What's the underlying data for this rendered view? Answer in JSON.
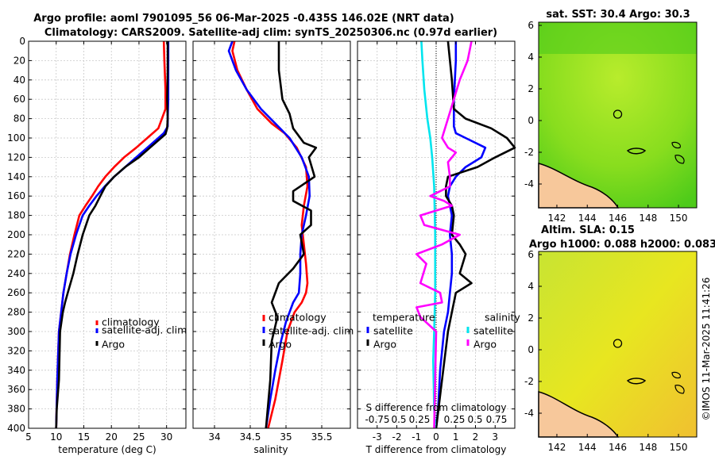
{
  "title": {
    "line1": "Argo profile: aoml 7901095_56 06-Mar-2025 -0.435S 146.02E (NRT data)",
    "line2": "Climatology: CARS2009. Satellite-adj clim: synTS_20250306.nc (0.97d earlier)"
  },
  "colors": {
    "climatology": "#ff0000",
    "satellite": "#0000ff",
    "argo": "#000000",
    "temp_diff": "#0000ff",
    "sal_diff": "#ff00ff",
    "sat_sal_diff": "#00e5ee",
    "land": "#f7c89b"
  },
  "chart_data": [
    {
      "type": "line",
      "name": "temperature",
      "xlabel": "temperature (deg C)",
      "ylabel": "",
      "xlim": [
        5,
        33.5
      ],
      "ylim": [
        400,
        0
      ],
      "xticks": [
        5,
        10,
        15,
        20,
        25,
        30
      ],
      "yticks": [
        0,
        20,
        40,
        60,
        80,
        100,
        120,
        140,
        160,
        180,
        200,
        220,
        240,
        260,
        280,
        300,
        320,
        340,
        360,
        380,
        400
      ],
      "grid": true,
      "legend": {
        "position": "lower-right",
        "entries": [
          "climatology",
          "satellite-adj. clim",
          "Argo"
        ]
      },
      "series": [
        {
          "name": "climatology",
          "color": "#ff0000",
          "x": [
            29.5,
            29.6,
            29.8,
            29.8,
            28.5,
            26.5,
            24.5,
            22.3,
            20.5,
            18.9,
            17.6,
            16.5,
            15.3,
            14.2,
            13.3,
            12.5,
            11.9,
            11.3,
            10.9,
            10.5,
            10.2,
            10.0
          ],
          "y": [
            0,
            20,
            50,
            70,
            90,
            100,
            110,
            120,
            130,
            140,
            150,
            160,
            170,
            180,
            200,
            220,
            240,
            260,
            280,
            300,
            350,
            400
          ]
        },
        {
          "name": "satellite-adj. clim",
          "color": "#0000ff",
          "x": [
            30.3,
            30.3,
            30.3,
            30.2,
            30.2,
            29.5,
            28.5,
            26.5,
            24.5,
            22.5,
            20.5,
            18.8,
            17.3,
            16.0,
            14.8,
            13.6,
            12.6,
            11.9,
            11.3,
            10.9,
            10.5,
            10.2,
            10.0
          ],
          "y": [
            0,
            30,
            60,
            80,
            88,
            95,
            100,
            110,
            120,
            130,
            140,
            150,
            160,
            170,
            180,
            200,
            220,
            240,
            260,
            280,
            300,
            350,
            400
          ]
        },
        {
          "name": "Argo",
          "color": "#000000",
          "x": [
            30.2,
            30.2,
            30.1,
            30.2,
            30.1,
            29.8,
            29.0,
            27.0,
            25.0,
            22.5,
            20.5,
            18.9,
            18.0,
            17.1,
            16.0,
            14.8,
            13.9,
            13.1,
            12.1,
            11.6,
            11.2,
            10.7,
            10.5,
            10.1,
            10.0
          ],
          "y": [
            0,
            30,
            60,
            80,
            90,
            96,
            100,
            110,
            120,
            130,
            140,
            150,
            160,
            170,
            180,
            200,
            220,
            240,
            260,
            270,
            280,
            300,
            350,
            380,
            400
          ]
        }
      ]
    },
    {
      "type": "line",
      "name": "salinity",
      "xlabel": "salinity",
      "ylabel": "",
      "xlim": [
        33.7,
        35.9
      ],
      "ylim": [
        400,
        0
      ],
      "xticks": [
        34,
        34.5,
        35,
        35.5
      ],
      "tick_labels": [
        "34",
        "34.5",
        "35",
        "35.5"
      ],
      "grid": true,
      "legend": {
        "position": "lower-right",
        "entries": [
          "climatology",
          "satellite-adj. clim",
          "Argo"
        ]
      },
      "series": [
        {
          "name": "climatology",
          "color": "#ff0000",
          "x": [
            34.28,
            34.25,
            34.32,
            34.45,
            34.6,
            34.8,
            34.98,
            35.15,
            35.28,
            35.3,
            35.25,
            35.22,
            35.25,
            35.28,
            35.3,
            35.28,
            35.22,
            35.12,
            35.02,
            34.95,
            34.85,
            34.75
          ],
          "y": [
            0,
            10,
            30,
            50,
            70,
            85,
            95,
            110,
            130,
            150,
            170,
            190,
            210,
            230,
            250,
            260,
            270,
            280,
            300,
            330,
            370,
            400
          ]
        },
        {
          "name": "satellite-adj. clim",
          "color": "#0000ff",
          "x": [
            34.25,
            34.2,
            34.3,
            34.45,
            34.65,
            34.85,
            35.05,
            35.22,
            35.32,
            35.33,
            35.28,
            35.22,
            35.2,
            35.2,
            35.18,
            35.1,
            35.0,
            34.93,
            34.85,
            34.78,
            34.72
          ],
          "y": [
            0,
            10,
            30,
            50,
            70,
            85,
            100,
            120,
            140,
            160,
            180,
            200,
            220,
            240,
            260,
            270,
            290,
            310,
            340,
            370,
            400
          ]
        },
        {
          "name": "Argo",
          "color": "#000000",
          "x": [
            34.9,
            34.9,
            34.95,
            35.05,
            35.1,
            35.25,
            35.42,
            35.32,
            35.4,
            35.1,
            35.1,
            35.35,
            35.35,
            35.2,
            35.25,
            35.1,
            34.9,
            34.8,
            34.88,
            34.8,
            34.78,
            34.72
          ],
          "y": [
            0,
            30,
            60,
            75,
            90,
            105,
            110,
            120,
            140,
            155,
            165,
            175,
            190,
            200,
            220,
            235,
            250,
            270,
            285,
            310,
            350,
            400
          ]
        }
      ]
    },
    {
      "type": "line",
      "name": "differences",
      "xlabel": "T difference from climatology",
      "annotation_title": "S difference from climatology",
      "top_tick_labels": [
        "-0.75",
        "0.5",
        "0.25",
        "0.25",
        "0.5",
        "0.75"
      ],
      "xlim": [
        -4,
        4
      ],
      "ylim": [
        400,
        0
      ],
      "xticks": [
        -3,
        -2,
        -1,
        0,
        1,
        2,
        3
      ],
      "grid": true,
      "legend": {
        "position": "lower",
        "temperature_header": "temperature",
        "salinity_header": "salinity",
        "entries": [
          "satellite",
          "Argo",
          "satellite",
          "Argo"
        ]
      },
      "series": [
        {
          "name": "temperature satellite",
          "color": "#0000ff",
          "x": [
            1.0,
            1.0,
            0.9,
            0.9,
            0.9,
            1.0,
            1.5,
            2.5,
            2.3,
            1.5,
            1.0,
            0.7,
            0.6,
            0.8,
            0.7,
            0.8,
            0.8,
            0.7,
            0.6,
            0.4,
            0.2,
            0.1,
            0.0
          ],
          "y": [
            0,
            20,
            60,
            80,
            88,
            95,
            100,
            110,
            120,
            130,
            140,
            150,
            160,
            180,
            200,
            220,
            240,
            260,
            280,
            300,
            340,
            380,
            400
          ]
        },
        {
          "name": "temperature Argo",
          "color": "#000000",
          "x": [
            0.6,
            0.8,
            0.9,
            1.5,
            2.8,
            3.6,
            4.0,
            3.0,
            2.1,
            0.6,
            0.5,
            0.5,
            0.8,
            0.9,
            0.8,
            1.2,
            1.5,
            1.2,
            1.8,
            1.0,
            0.8,
            0.6,
            0.3,
            0.0
          ],
          "y": [
            0,
            40,
            70,
            80,
            90,
            100,
            110,
            120,
            130,
            140,
            150,
            160,
            170,
            180,
            200,
            210,
            220,
            240,
            250,
            260,
            280,
            300,
            350,
            400
          ]
        },
        {
          "name": "salinity satellite",
          "color": "#00e5ee",
          "x": [
            -0.75,
            -0.7,
            -0.6,
            -0.45,
            -0.3,
            -0.2,
            -0.1,
            -0.05,
            -0.05,
            -0.1,
            -0.15,
            -0.1,
            -0.05
          ],
          "y": [
            0,
            20,
            50,
            80,
            100,
            120,
            150,
            200,
            260,
            300,
            330,
            380,
            400
          ]
        },
        {
          "name": "salinity Argo",
          "color": "#ff00ff",
          "x": [
            1.8,
            1.6,
            1.2,
            0.9,
            0.6,
            0.3,
            0.6,
            1.0,
            0.6,
            0.7,
            0.7,
            0.2,
            -0.3,
            0.4,
            0.8,
            -0.8,
            -0.6,
            1.2,
            0.3,
            -1.0,
            -0.5,
            -0.8,
            0.2,
            0.3,
            -1.0,
            -0.8,
            0.0,
            -0.1
          ],
          "y": [
            0,
            20,
            40,
            60,
            80,
            100,
            110,
            115,
            125,
            140,
            150,
            155,
            160,
            165,
            170,
            180,
            190,
            200,
            210,
            220,
            230,
            250,
            260,
            270,
            275,
            285,
            300,
            400
          ]
        }
      ]
    },
    {
      "type": "heatmap",
      "name": "sst map",
      "title": "sat. SST: 30.4 Argo: 30.3",
      "xlim": [
        140.8,
        151.2
      ],
      "ylim": [
        -5.5,
        6.2
      ],
      "xticks": [
        142,
        144,
        146,
        148,
        150
      ],
      "yticks": [
        -4,
        -2,
        0,
        2,
        4,
        6
      ],
      "marker": {
        "x": 146.0,
        "y": 0.4
      }
    },
    {
      "type": "heatmap",
      "name": "sla map",
      "title_line1": "Altim. SLA: 0.15",
      "title_line2": "Argo h1000: 0.088 h2000: 0.083",
      "xlim": [
        140.8,
        151.2
      ],
      "ylim": [
        -5.5,
        6.2
      ],
      "xticks": [
        142,
        144,
        146,
        148,
        150
      ],
      "yticks": [
        -4,
        -2,
        0,
        2,
        4,
        6
      ],
      "marker": {
        "x": 146.0,
        "y": 0.4
      }
    }
  ],
  "watermark": "©IMOS 11-Mar-2025 11:41:26"
}
